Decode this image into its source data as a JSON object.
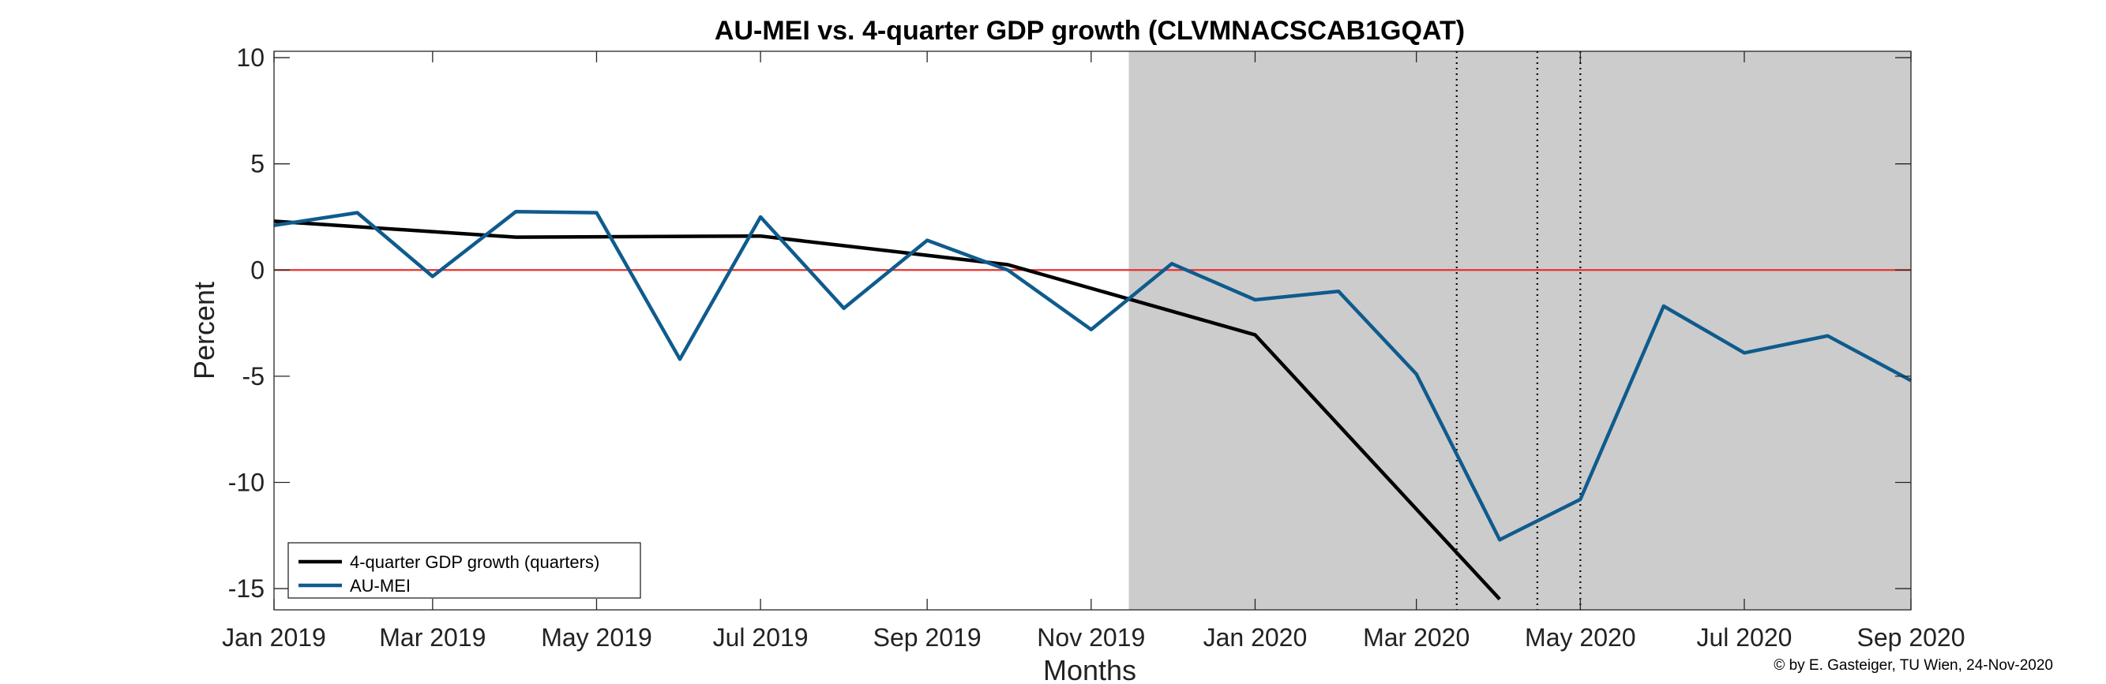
{
  "chart_data": {
    "type": "line",
    "title": "AU-MEI vs. 4-quarter GDP growth (CLVMNACSCAB1GQAT)",
    "xlabel": "Months",
    "ylabel": "Percent",
    "ylim": [
      -16,
      10.3
    ],
    "yticks": [
      10,
      5,
      0,
      -5,
      -10,
      -15
    ],
    "ytick_labels": [
      "10",
      "5",
      "0",
      "-5",
      "-10",
      "-15"
    ],
    "xlim": [
      "2019-01-01",
      "2020-09-01"
    ],
    "xticks": [
      {
        "date": "2019-01-01",
        "label": "Jan 2019"
      },
      {
        "date": "2019-03-01",
        "label": "Mar 2019"
      },
      {
        "date": "2019-05-01",
        "label": "May 2019"
      },
      {
        "date": "2019-07-01",
        "label": "Jul 2019"
      },
      {
        "date": "2019-09-01",
        "label": "Sep 2019"
      },
      {
        "date": "2019-11-01",
        "label": "Nov 2019"
      },
      {
        "date": "2020-01-01",
        "label": "Jan 2020"
      },
      {
        "date": "2020-03-01",
        "label": "Mar 2020"
      },
      {
        "date": "2020-05-01",
        "label": "May 2020"
      },
      {
        "date": "2020-07-01",
        "label": "Jul 2020"
      },
      {
        "date": "2020-09-01",
        "label": "Sep 2020"
      }
    ],
    "shaded_region": {
      "from": "2019-11-15",
      "to": "2020-09-01",
      "color": "#cccccc"
    },
    "reference_line": {
      "y": 0,
      "color": "#e8312c"
    },
    "vertical_markers": [
      "2020-03-16",
      "2020-04-15",
      "2020-05-01"
    ],
    "grid": false,
    "legend_position": "bottom-left",
    "series": [
      {
        "name": "4-quarter GDP growth (quarters)",
        "color": "#000000",
        "x": [
          "2019-01-01",
          "2019-04-01",
          "2019-07-01",
          "2019-10-01",
          "2020-01-01",
          "2020-04-01"
        ],
        "y": [
          2.3,
          1.55,
          1.6,
          0.25,
          -3.05,
          -15.5
        ]
      },
      {
        "name": "AU-MEI",
        "color": "#0f5b8d",
        "x": [
          "2019-01-01",
          "2019-02-01",
          "2019-03-01",
          "2019-04-01",
          "2019-05-01",
          "2019-06-01",
          "2019-07-01",
          "2019-08-01",
          "2019-09-01",
          "2019-10-01",
          "2019-11-01",
          "2019-12-01",
          "2020-01-01",
          "2020-02-01",
          "2020-03-01",
          "2020-04-01",
          "2020-05-01",
          "2020-06-01",
          "2020-07-01",
          "2020-08-01",
          "2020-09-01"
        ],
        "y": [
          2.1,
          2.7,
          -0.3,
          2.75,
          2.7,
          -4.2,
          2.5,
          -1.8,
          1.4,
          0.0,
          -2.8,
          0.3,
          -1.4,
          -1.0,
          -4.9,
          -12.7,
          -10.8,
          -1.7,
          -3.9,
          -3.1,
          -5.2
        ]
      }
    ],
    "credit": "© by E. Gasteiger, TU Wien, 24-Nov-2020"
  }
}
